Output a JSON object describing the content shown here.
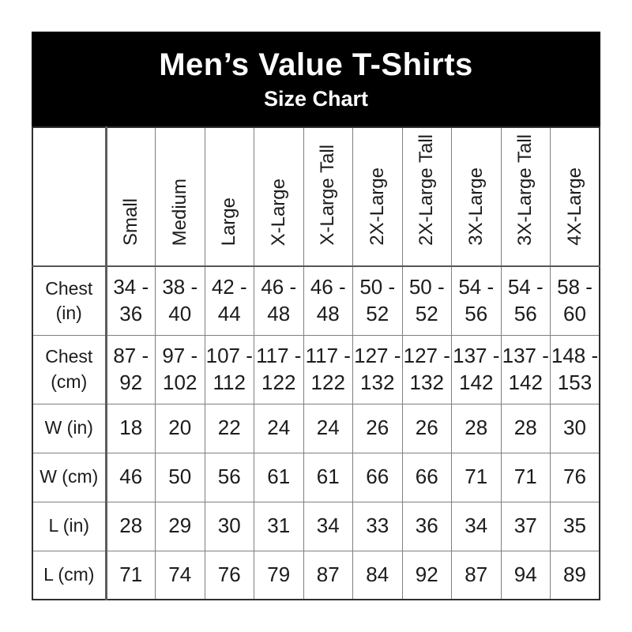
{
  "header": {
    "title": "Men’s Value T-Shirts",
    "subtitle": "Size Chart"
  },
  "colors": {
    "banner_bg": "#000000",
    "banner_text": "#ffffff",
    "grid_line": "#7f7f7f",
    "outer_border": "#2f2f2f",
    "text": "#1c1c1c"
  },
  "chart_data": {
    "type": "table",
    "title": "Men’s Value T-Shirts Size Chart",
    "columns": [
      "Small",
      "Medium",
      "Large",
      "X-Large",
      "X-Large Tall",
      "2X-Large",
      "2X-Large Tall",
      "3X-Large",
      "3X-Large Tall",
      "4X-Large"
    ],
    "rows": [
      {
        "label": "Chest (in)",
        "values": [
          "34 - 36",
          "38 - 40",
          "42 - 44",
          "46 - 48",
          "46 - 48",
          "50 - 52",
          "50 - 52",
          "54 - 56",
          "54 - 56",
          "58 - 60"
        ]
      },
      {
        "label": "Chest (cm)",
        "values": [
          "87 - 92",
          "97 - 102",
          "107 - 112",
          "117 - 122",
          "117 - 122",
          "127 - 132",
          "127 - 132",
          "137 - 142",
          "137 - 142",
          "148 - 153"
        ]
      },
      {
        "label": "W (in)",
        "values": [
          "18",
          "20",
          "22",
          "24",
          "24",
          "26",
          "26",
          "28",
          "28",
          "30"
        ]
      },
      {
        "label": "W (cm)",
        "values": [
          "46",
          "50",
          "56",
          "61",
          "61",
          "66",
          "66",
          "71",
          "71",
          "76"
        ]
      },
      {
        "label": "L (in)",
        "values": [
          "28",
          "29",
          "30",
          "31",
          "34",
          "33",
          "36",
          "34",
          "37",
          "35"
        ]
      },
      {
        "label": "L (cm)",
        "values": [
          "71",
          "74",
          "76",
          "79",
          "87",
          "84",
          "92",
          "87",
          "94",
          "89"
        ]
      }
    ]
  }
}
